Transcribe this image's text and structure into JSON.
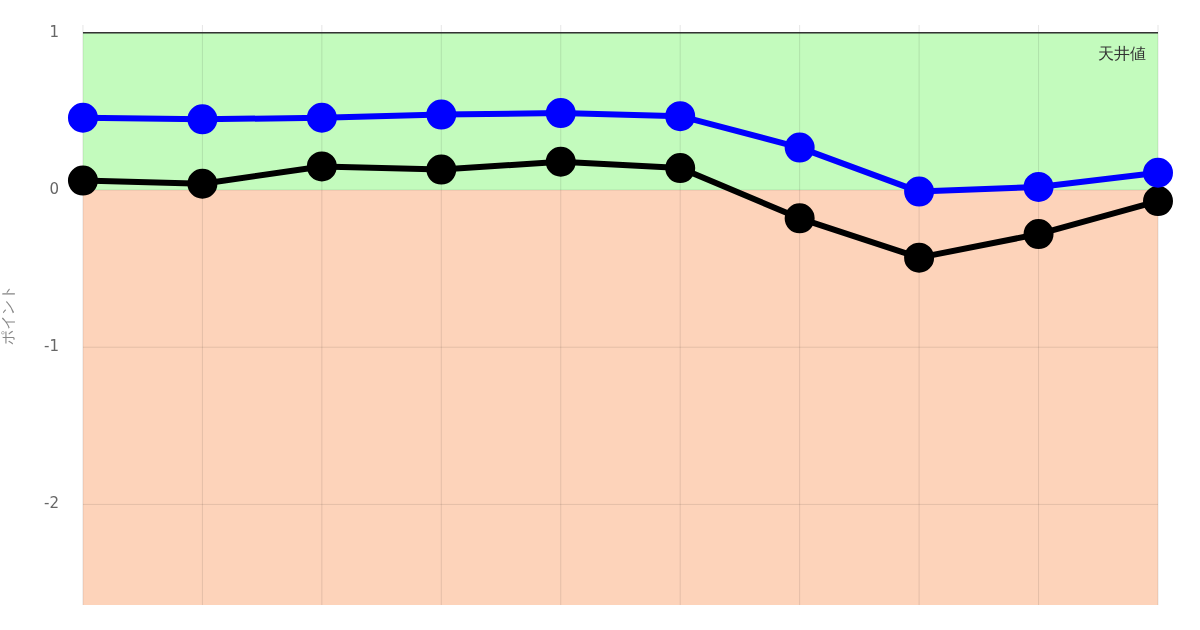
{
  "chart_data": {
    "type": "line",
    "ylabel": "ポイント",
    "categories": [
      null,
      null,
      null,
      null,
      null,
      null,
      null,
      null,
      null,
      null
    ],
    "series": [
      {
        "color": "#0000ff",
        "values": [
          0.46,
          0.45,
          0.46,
          0.48,
          0.49,
          0.47,
          0.27,
          -0.01,
          0.02,
          0.11
        ]
      },
      {
        "color": "#000000",
        "values": [
          0.06,
          0.04,
          0.15,
          0.13,
          0.18,
          0.14,
          -0.18,
          -0.43,
          -0.28,
          -0.07
        ]
      }
    ],
    "ylim": [
      -2.64,
      1.05
    ],
    "yticks": [
      -2,
      -1,
      0,
      1
    ],
    "grid": true,
    "legend": false,
    "tick_labels": "y",
    "marker": "circle",
    "line_style": "solid",
    "bands": [
      {
        "axis": "y",
        "from": 0,
        "to": 1,
        "color": "#c3fbbd"
      },
      {
        "axis": "y",
        "from": -2.64,
        "to": 0,
        "color": "#fdd3ba"
      }
    ],
    "ref_lines": [
      {
        "axis": "y",
        "value": 1,
        "label": "天井値",
        "color": "#333333",
        "line_style": "solid"
      }
    ]
  }
}
